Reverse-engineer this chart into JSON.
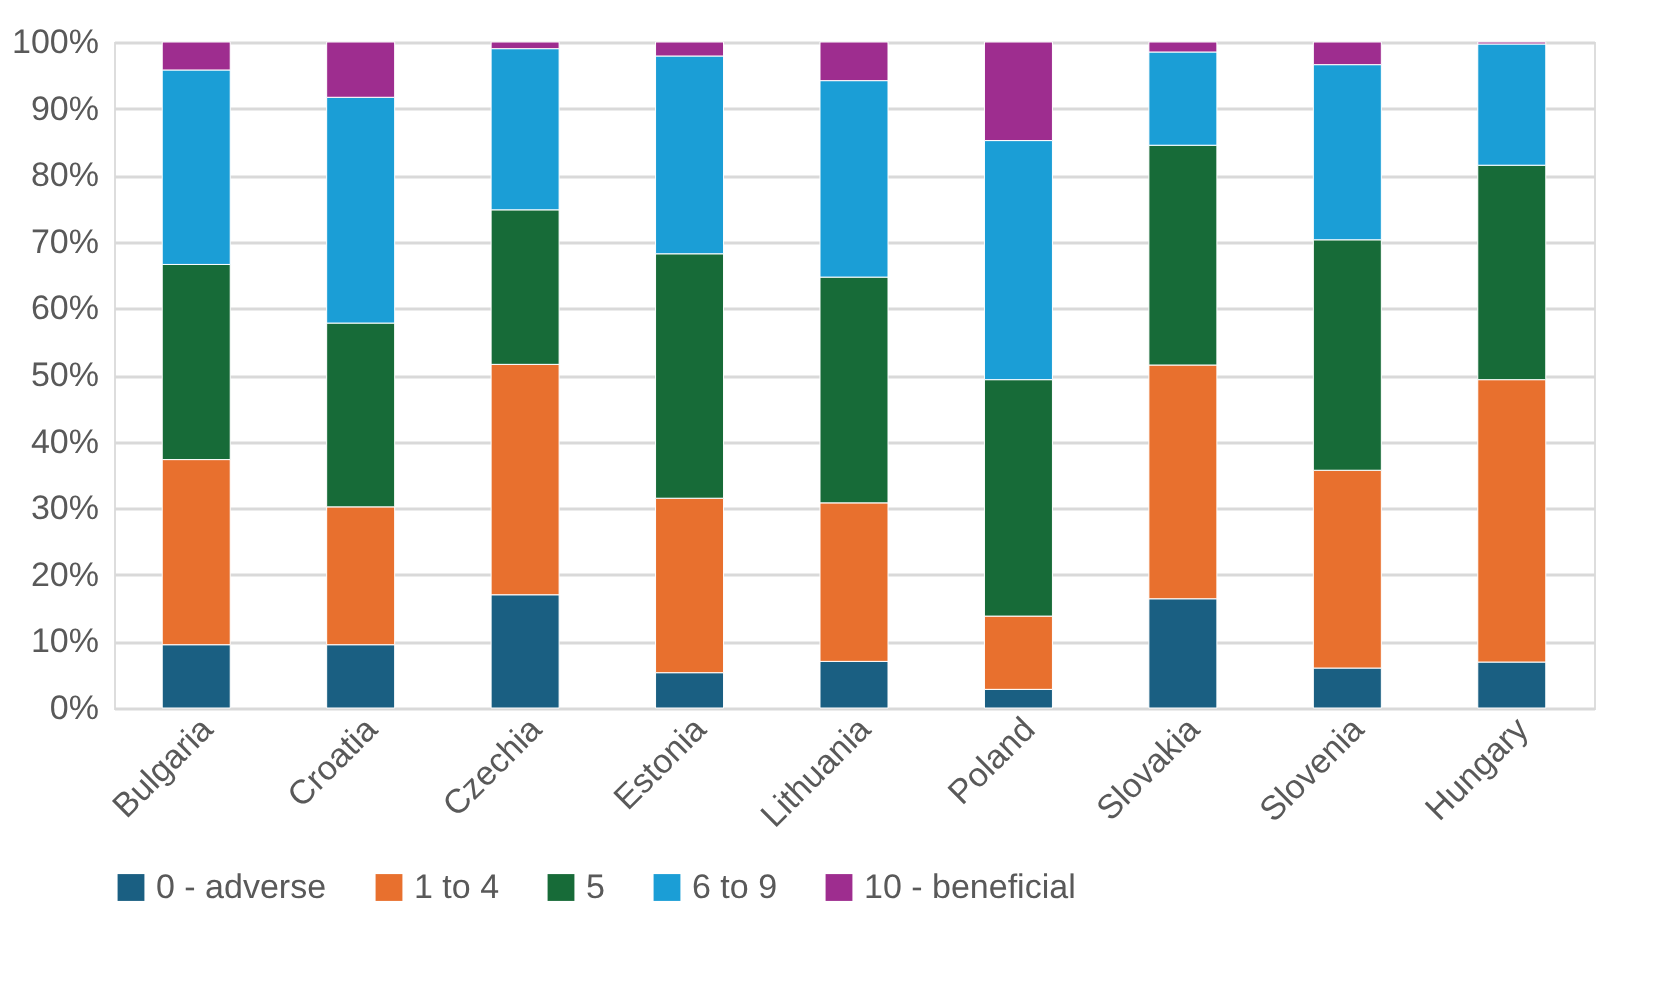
{
  "chart_data": {
    "type": "bar",
    "stacked": true,
    "categories": [
      "Bulgaria",
      "Croatia",
      "Czechia",
      "Estonia",
      "Lithuania",
      "Poland",
      "Slovakia",
      "Slovenia",
      "Hungary"
    ],
    "series": [
      {
        "name": "0 - adverse",
        "color": "#1a5f82",
        "values": [
          9.5,
          9.5,
          17,
          5.3,
          7,
          2.8,
          16.4,
          6,
          6.9
        ]
      },
      {
        "name": "1 to 4",
        "color": "#e8702e",
        "values": [
          27.8,
          20.7,
          34.6,
          26.2,
          23.8,
          11,
          35.1,
          29.7,
          42.4
        ]
      },
      {
        "name": "5",
        "color": "#176b38",
        "values": [
          29.3,
          27.6,
          23.2,
          36.7,
          33.9,
          35.5,
          33,
          34.6,
          32.2
        ]
      },
      {
        "name": "6 to 9",
        "color": "#1b9ed6",
        "values": [
          29.2,
          33.9,
          24.2,
          29.7,
          29.5,
          35.9,
          14,
          26.3,
          18.2
        ]
      },
      {
        "name": "10 - beneficial",
        "color": "#9e2d8f",
        "values": [
          4.2,
          8.3,
          1,
          2.1,
          5.8,
          14.8,
          1.5,
          3.4,
          0.3
        ]
      }
    ],
    "ylim": [
      0,
      100
    ],
    "yticks": [
      {
        "value": 0,
        "label": "0%"
      },
      {
        "value": 10,
        "label": "10%"
      },
      {
        "value": 20,
        "label": "20%"
      },
      {
        "value": 30,
        "label": "30%"
      },
      {
        "value": 40,
        "label": "40%"
      },
      {
        "value": 50,
        "label": "50%"
      },
      {
        "value": 60,
        "label": "60%"
      },
      {
        "value": 70,
        "label": "70%"
      },
      {
        "value": 80,
        "label": "80%"
      },
      {
        "value": 90,
        "label": "90%"
      },
      {
        "value": 100,
        "label": "100%"
      }
    ],
    "grid": "y",
    "legend": "bottom"
  }
}
